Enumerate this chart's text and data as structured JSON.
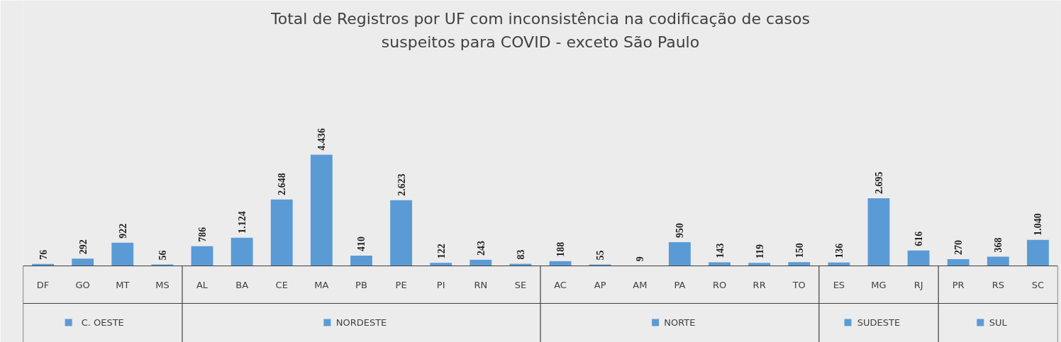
{
  "chart_data": {
    "type": "bar",
    "title": "Total de Registros por UF com inconsistência na codificação de casos\nsuspeitos para COVID - exceto São Paulo",
    "categories": [
      "DF",
      "GO",
      "MT",
      "MS",
      "AL",
      "BA",
      "CE",
      "MA",
      "PB",
      "PE",
      "PI",
      "RN",
      "SE",
      "AC",
      "AP",
      "AM",
      "PA",
      "RO",
      "RR",
      "TO",
      "ES",
      "MG",
      "RJ",
      "PR",
      "RS",
      "SC"
    ],
    "series": [
      {
        "name": "C. OESTE",
        "color": "#5b9bd5",
        "values": [
          76,
          292,
          922,
          56,
          null,
          null,
          null,
          null,
          null,
          null,
          null,
          null,
          null,
          null,
          null,
          null,
          null,
          null,
          null,
          null,
          null,
          null,
          null,
          null,
          null,
          null
        ],
        "value_labels": [
          "76",
          "292",
          "922",
          "56",
          null,
          null,
          null,
          null,
          null,
          null,
          null,
          null,
          null,
          null,
          null,
          null,
          null,
          null,
          null,
          null,
          null,
          null,
          null,
          null,
          null,
          null
        ]
      },
      {
        "name": "NORDESTE",
        "color": "#5b9bd5",
        "values": [
          null,
          null,
          null,
          null,
          786,
          1124,
          2648,
          4436,
          410,
          2623,
          122,
          243,
          83,
          null,
          null,
          null,
          null,
          null,
          null,
          null,
          null,
          null,
          null,
          null,
          null,
          null
        ],
        "value_labels": [
          null,
          null,
          null,
          null,
          "786",
          "1.124",
          "2.648",
          "4.436",
          "410",
          "2.623",
          "122",
          "243",
          "83",
          null,
          null,
          null,
          null,
          null,
          null,
          null,
          null,
          null,
          null,
          null,
          null,
          null
        ]
      },
      {
        "name": "NORTE",
        "color": "#5b9bd5",
        "values": [
          null,
          null,
          null,
          null,
          null,
          null,
          null,
          null,
          null,
          null,
          null,
          null,
          null,
          188,
          55,
          9,
          950,
          143,
          119,
          150,
          null,
          null,
          null,
          null,
          null,
          null
        ],
        "value_labels": [
          null,
          null,
          null,
          null,
          null,
          null,
          null,
          null,
          null,
          null,
          null,
          null,
          null,
          "188",
          "55",
          "9",
          "950",
          "143",
          "119",
          "150",
          null,
          null,
          null,
          null,
          null,
          null
        ]
      },
      {
        "name": "SUDESTE",
        "color": "#5b9bd5",
        "values": [
          null,
          null,
          null,
          null,
          null,
          null,
          null,
          null,
          null,
          null,
          null,
          null,
          null,
          null,
          null,
          null,
          null,
          null,
          null,
          null,
          136,
          2695,
          616,
          null,
          null,
          null
        ],
        "value_labels": [
          null,
          null,
          null,
          null,
          null,
          null,
          null,
          null,
          null,
          null,
          null,
          null,
          null,
          null,
          null,
          null,
          null,
          null,
          null,
          null,
          "136",
          "2.695",
          "616",
          null,
          null,
          null
        ]
      },
      {
        "name": "SUL",
        "color": "#5b9bd5",
        "values": [
          null,
          null,
          null,
          null,
          null,
          null,
          null,
          null,
          null,
          null,
          null,
          null,
          null,
          null,
          null,
          null,
          null,
          null,
          null,
          null,
          null,
          null,
          null,
          270,
          368,
          1040
        ],
        "value_labels": [
          null,
          null,
          null,
          null,
          null,
          null,
          null,
          null,
          null,
          null,
          null,
          null,
          null,
          null,
          null,
          null,
          null,
          null,
          null,
          null,
          null,
          null,
          null,
          "270",
          "368",
          "1.040"
        ]
      }
    ],
    "legend": "bottom"
  }
}
